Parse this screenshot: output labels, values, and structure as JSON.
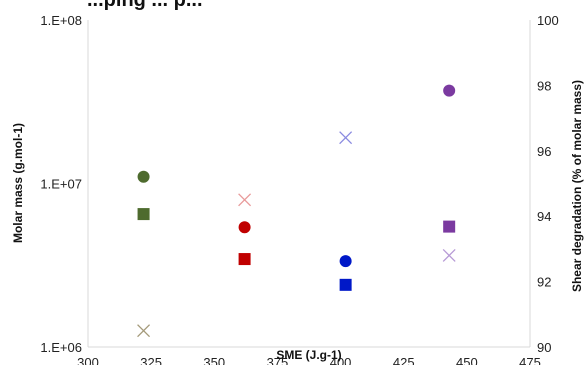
{
  "chart_data": {
    "type": "scatter",
    "title": "...ping ... p...",
    "xlabel": "SME (J.g-1)",
    "ylabel_left": "Molar mass  (g.mol-1)",
    "ylabel_right": "Shear degradation (% of molar mass)",
    "x_ticks": [
      "300",
      "325",
      "350",
      "375",
      "400",
      "425",
      "450",
      "475"
    ],
    "xlim": [
      300,
      475
    ],
    "y_left_scale": "log",
    "y_left_ticks": [
      "1.E+06",
      "1.E+07",
      "1.E+08"
    ],
    "ylim_left": [
      1000000,
      100000000
    ],
    "y_right_ticks": [
      "90",
      "92",
      "94",
      "96",
      "98",
      "100"
    ],
    "ylim_right": [
      90,
      100
    ],
    "grid": false,
    "legend": "none",
    "series": [
      {
        "marker": "circle",
        "axis": "left",
        "points": [
          {
            "x": 322,
            "y": 11000000,
            "color": "#4e6b2e"
          },
          {
            "x": 362,
            "y": 5400000,
            "color": "#c00000"
          },
          {
            "x": 402,
            "y": 3350000,
            "color": "#0018c8"
          },
          {
            "x": 443,
            "y": 37000000,
            "color": "#7b3aa0"
          }
        ]
      },
      {
        "marker": "square",
        "axis": "left",
        "points": [
          {
            "x": 322,
            "y": 6500000,
            "color": "#4e6b2e"
          },
          {
            "x": 362,
            "y": 3450000,
            "color": "#c00000"
          },
          {
            "x": 402,
            "y": 2400000,
            "color": "#0018c8"
          },
          {
            "x": 443,
            "y": 5450000,
            "color": "#7b3aa0"
          }
        ]
      },
      {
        "marker": "cross",
        "axis": "right",
        "points": [
          {
            "x": 322,
            "y": 90.5,
            "color": "#a49a7a"
          },
          {
            "x": 362,
            "y": 94.5,
            "color": "#e89a9a"
          },
          {
            "x": 402,
            "y": 96.4,
            "color": "#8a8ae0"
          },
          {
            "x": 443,
            "y": 92.8,
            "color": "#b79ad6"
          }
        ]
      }
    ]
  }
}
